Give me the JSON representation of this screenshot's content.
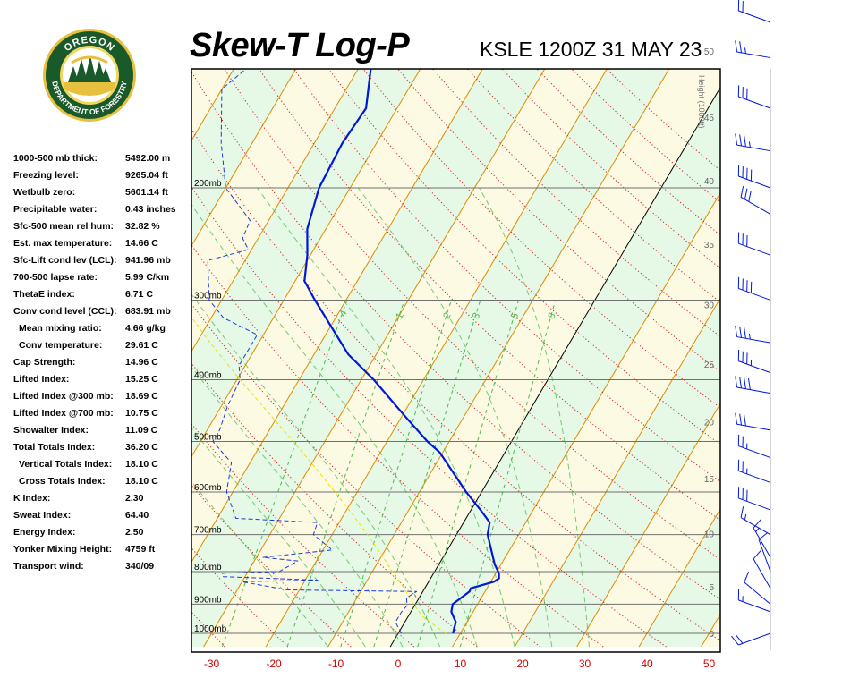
{
  "header": {
    "title": "Skew-T Log-P",
    "subtitle": "KSLE 1200Z 31 MAY 23",
    "logo": {
      "top_text": "OREGON",
      "bottom_text": "DEPARTMENT OF FORESTRY"
    }
  },
  "indices": [
    {
      "label": "1000-500 mb thick:",
      "value": "5492.00 m"
    },
    {
      "label": "Freezing level:",
      "value": "9265.04 ft"
    },
    {
      "label": "Wetbulb zero:",
      "value": "5601.14 ft"
    },
    {
      "label": "Precipitable water:",
      "value": "0.43 inches"
    },
    {
      "label": "Sfc-500 mean rel hum:",
      "value": "32.82 %"
    },
    {
      "label": "Est. max temperature:",
      "value": "14.66 C"
    },
    {
      "label": "Sfc-Lift cond lev (LCL):",
      "value": "941.96 mb"
    },
    {
      "label": "700-500 lapse rate:",
      "value": "5.99 C/km"
    },
    {
      "label": "ThetaE index:",
      "value": "6.71 C"
    },
    {
      "label": "Conv cond level (CCL):",
      "value": "683.91 mb"
    },
    {
      "label": "Mean mixing ratio:",
      "value": "4.66 g/kg",
      "indent": true
    },
    {
      "label": "Conv temperature:",
      "value": "29.61 C",
      "indent": true
    },
    {
      "label": "Cap Strength:",
      "value": "14.96 C"
    },
    {
      "label": "Lifted Index:",
      "value": "15.25 C"
    },
    {
      "label": "Lifted Index @300 mb:",
      "value": "18.69 C"
    },
    {
      "label": "Lifted Index @700 mb:",
      "value": "10.75 C"
    },
    {
      "label": "Showalter Index:",
      "value": "11.09 C"
    },
    {
      "label": "Total Totals Index:",
      "value": "36.20 C"
    },
    {
      "label": "Vertical Totals Index:",
      "value": "18.10 C",
      "indent": true
    },
    {
      "label": "Cross Totals Index:",
      "value": "18.10 C",
      "indent": true
    },
    {
      "label": "K Index:",
      "value": "2.30"
    },
    {
      "label": "Sweat Index:",
      "value": "64.40"
    },
    {
      "label": "Energy Index:",
      "value": "2.50"
    },
    {
      "label": "Yonker Mixing Height:",
      "value": "4759 ft"
    },
    {
      "label": "Transport wind:",
      "value": "340/09"
    }
  ],
  "colors": {
    "temperature": "#0018d8",
    "dewpoint": "#1a3ad8",
    "parcel": "#e8e000",
    "isotherm": "#e08a00",
    "dry_adiabat": "#cc2222",
    "mixing_ratio": "#4cba4c",
    "band_green": "#e6f8e6",
    "band_yellow": "#fcfae2",
    "isobar": "#707070",
    "axis_labels": "#d00000"
  },
  "chart_data": {
    "type": "line",
    "chart_kind": "skew-t log-p",
    "x_ticks": [
      "-30",
      "-20",
      "-10",
      "0",
      "10",
      "20",
      "30",
      "40",
      "50"
    ],
    "x_range": [
      -33,
      50
    ],
    "y_range_mb": [
      1050,
      100
    ],
    "y_scale": "log",
    "isobars": [
      {
        "mb": 1000,
        "label": "1000mb"
      },
      {
        "mb": 900,
        "label": "900mb"
      },
      {
        "mb": 800,
        "label": "800mb"
      },
      {
        "mb": 700,
        "label": "700mb"
      },
      {
        "mb": 600,
        "label": "600mb"
      },
      {
        "mb": 500,
        "label": "500mb"
      },
      {
        "mb": 400,
        "label": "400mb"
      },
      {
        "mb": 300,
        "label": "300mb"
      },
      {
        "mb": 200,
        "label": "200mb"
      }
    ],
    "height_axis": {
      "label": "Height (1000ft)",
      "ticks": [
        {
          "ft1000": 0,
          "mb": 1000,
          "label": "0"
        },
        {
          "ft1000": 5,
          "mb": 845,
          "label": "5"
        },
        {
          "ft1000": 10,
          "mb": 697,
          "label": "10"
        },
        {
          "ft1000": 15,
          "mb": 572,
          "label": "15"
        },
        {
          "ft1000": 20,
          "mb": 466,
          "label": "20"
        },
        {
          "ft1000": 25,
          "mb": 378,
          "label": "25"
        },
        {
          "ft1000": 30,
          "mb": 305,
          "label": "30"
        },
        {
          "ft1000": 35,
          "mb": 245,
          "label": "35"
        },
        {
          "ft1000": 40,
          "mb": 195,
          "label": "40"
        },
        {
          "ft1000": 45,
          "mb": 155,
          "label": "45"
        },
        {
          "ft1000": 50,
          "mb": 122,
          "label": "50"
        }
      ]
    },
    "mixing_ratio_labels": [
      {
        "label": ".4",
        "g_kg": 0.4
      },
      {
        "label": "1",
        "g_kg": 1
      },
      {
        "label": "2",
        "g_kg": 2
      },
      {
        "label": "3",
        "g_kg": 3
      },
      {
        "label": "5",
        "g_kg": 5
      },
      {
        "label": "8",
        "g_kg": 8
      }
    ],
    "temperature": [
      [
        1000,
        8.8
      ],
      [
        960,
        8.2
      ],
      [
        925,
        6.5
      ],
      [
        900,
        6.0
      ],
      [
        860,
        7.5
      ],
      [
        850,
        7.4
      ],
      [
        830,
        10.5
      ],
      [
        820,
        11.0
      ],
      [
        805,
        10.5
      ],
      [
        780,
        9.0
      ],
      [
        700,
        5.0
      ],
      [
        670,
        4.2
      ],
      [
        640,
        1.5
      ],
      [
        600,
        -2.5
      ],
      [
        520,
        -10.5
      ],
      [
        500,
        -13.5
      ],
      [
        460,
        -19.0
      ],
      [
        400,
        -28.0
      ],
      [
        365,
        -34.5
      ],
      [
        300,
        -45.0
      ],
      [
        280,
        -48.5
      ],
      [
        255,
        -50.5
      ],
      [
        232,
        -53.0
      ],
      [
        200,
        -55.0
      ],
      [
        170,
        -55.5
      ],
      [
        150,
        -55.0
      ],
      [
        130,
        -58.0
      ],
      [
        118,
        -60.0
      ],
      [
        100,
        -58.0
      ]
    ],
    "dewpoint": [
      [
        1000,
        0.5
      ],
      [
        960,
        -1.5
      ],
      [
        925,
        -1.5
      ],
      [
        905,
        -1.2
      ],
      [
        880,
        -2.0
      ],
      [
        860,
        -1.0
      ],
      [
        855,
        -22.0
      ],
      [
        830,
        -30.0
      ],
      [
        825,
        -18.0
      ],
      [
        815,
        -33.5
      ],
      [
        805,
        -34.0
      ],
      [
        800,
        -25.0
      ],
      [
        770,
        -23.0
      ],
      [
        760,
        -29.0
      ],
      [
        740,
        -18.5
      ],
      [
        700,
        -23.0
      ],
      [
        670,
        -23.5
      ],
      [
        660,
        -37.0
      ],
      [
        600,
        -41.0
      ],
      [
        540,
        -43.0
      ],
      [
        500,
        -48.0
      ],
      [
        480,
        -48.0
      ],
      [
        440,
        -49.0
      ],
      [
        400,
        -49.5
      ],
      [
        380,
        -51.0
      ],
      [
        340,
        -51.0
      ],
      [
        320,
        -58.0
      ],
      [
        300,
        -62.0
      ],
      [
        260,
        -66.0
      ],
      [
        250,
        -60.5
      ],
      [
        240,
        -62.5
      ],
      [
        225,
        -63.0
      ],
      [
        200,
        -70.0
      ],
      [
        170,
        -75.0
      ],
      [
        140,
        -80.0
      ],
      [
        130,
        -78.0
      ],
      [
        112,
        -82.0
      ],
      [
        100,
        -83.0
      ]
    ],
    "parcel": [
      [
        1000,
        7.6
      ],
      [
        942,
        2.4
      ],
      [
        900,
        -0.3
      ],
      [
        850,
        -3.3
      ],
      [
        800,
        -6.8
      ],
      [
        750,
        -10.3
      ],
      [
        700,
        -14.3
      ],
      [
        650,
        -18.7
      ],
      [
        600,
        -23.6
      ],
      [
        550,
        -29.0
      ],
      [
        500,
        -35.1
      ],
      [
        450,
        -41.9
      ],
      [
        400,
        -49.5
      ],
      [
        350,
        -57.8
      ],
      [
        300,
        -66.9
      ]
    ],
    "wind_barbs": [
      {
        "mb": 1000,
        "dir": 250,
        "kt": 20
      },
      {
        "mb": 925,
        "dir": 290,
        "kt": 15
      },
      {
        "mb": 900,
        "dir": 310,
        "kt": 10
      },
      {
        "mb": 850,
        "dir": 330,
        "kt": 10
      },
      {
        "mb": 800,
        "dir": 340,
        "kt": 10
      },
      {
        "mb": 760,
        "dir": 330,
        "kt": 15
      },
      {
        "mb": 700,
        "dir": 300,
        "kt": 15
      },
      {
        "mb": 640,
        "dir": 290,
        "kt": 30
      },
      {
        "mb": 580,
        "dir": 290,
        "kt": 25
      },
      {
        "mb": 530,
        "dir": 290,
        "kt": 25
      },
      {
        "mb": 480,
        "dir": 280,
        "kt": 30
      },
      {
        "mb": 420,
        "dir": 280,
        "kt": 40
      },
      {
        "mb": 390,
        "dir": 290,
        "kt": 35
      },
      {
        "mb": 350,
        "dir": 280,
        "kt": 35
      },
      {
        "mb": 300,
        "dir": 290,
        "kt": 40
      },
      {
        "mb": 255,
        "dir": 290,
        "kt": 30
      },
      {
        "mb": 220,
        "dir": 300,
        "kt": 30
      },
      {
        "mb": 200,
        "dir": 290,
        "kt": 40
      },
      {
        "mb": 175,
        "dir": 280,
        "kt": 35
      },
      {
        "mb": 150,
        "dir": 290,
        "kt": 30
      },
      {
        "mb": 125,
        "dir": 280,
        "kt": 25
      },
      {
        "mb": 110,
        "dir": 290,
        "kt": 20
      }
    ]
  }
}
